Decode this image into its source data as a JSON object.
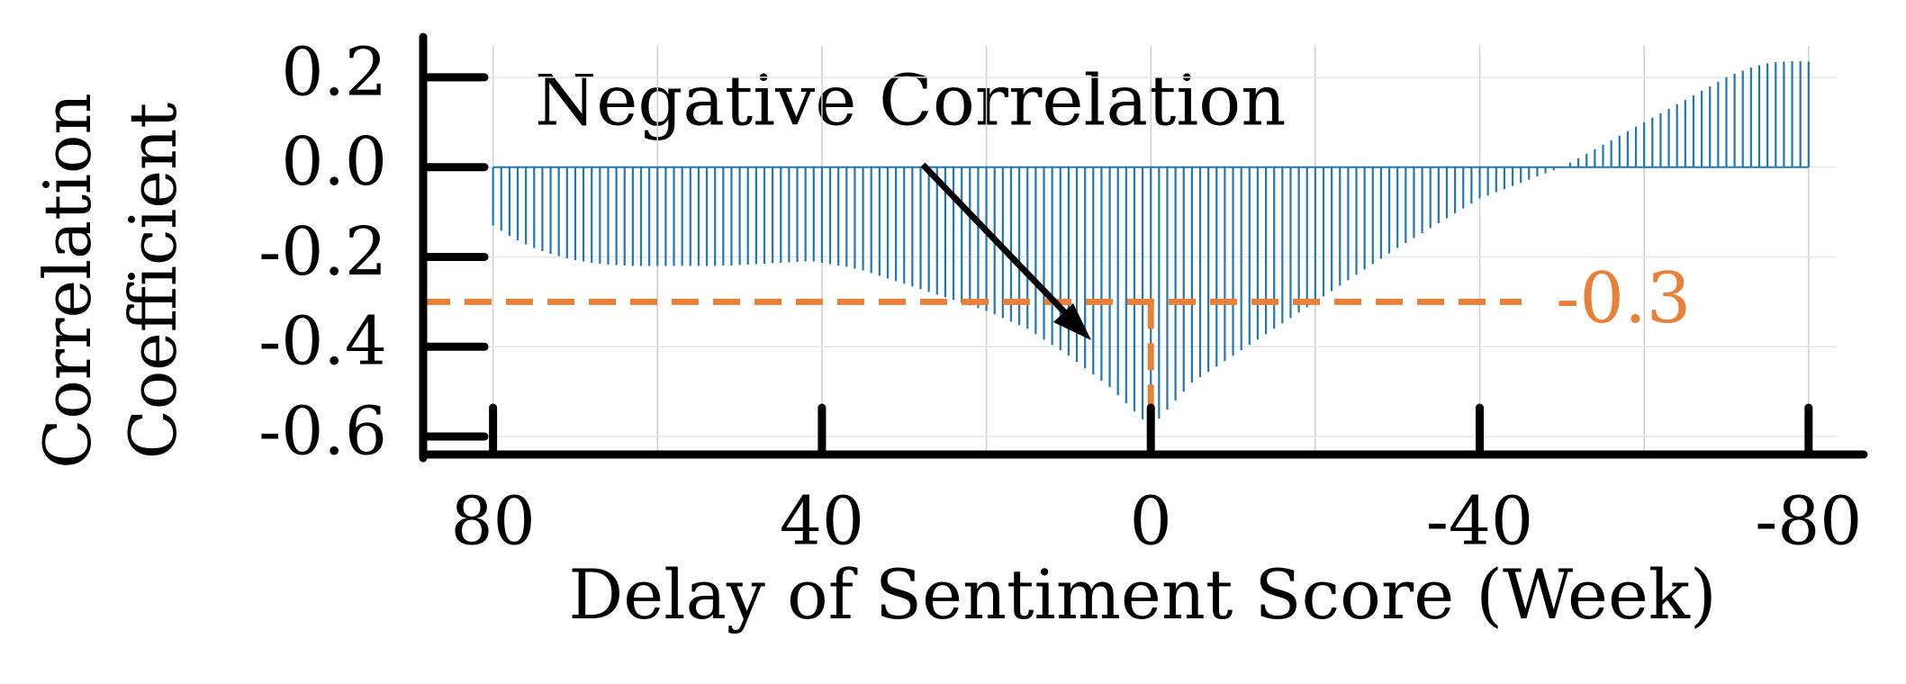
{
  "chart_data": {
    "type": "stem",
    "xlabel": "Delay of Sentiment Score (Week)",
    "ylabel": [
      "Correlation",
      "Coefficient"
    ],
    "annotation": "Negative Correlation",
    "reference": {
      "value": -0.3,
      "label": "-0.3",
      "color": "#e8803a"
    },
    "color": "#1f77b4",
    "xlim": [
      88.5,
      -86.7
    ],
    "ylim": [
      -0.64,
      0.29
    ],
    "xticks": [
      80,
      40,
      0,
      -40,
      -80
    ],
    "xgrid": [
      80,
      60,
      40,
      20,
      0,
      -20,
      -40,
      -60,
      -80
    ],
    "yticks": [
      0.2,
      {
        "value": 0,
        "label": "0.0"
      },
      -0.2,
      -0.4,
      -0.6
    ],
    "grid": true,
    "x": [
      80,
      79,
      78,
      77,
      76,
      75,
      74,
      73,
      72,
      71,
      70,
      69,
      68,
      67,
      66,
      65,
      64,
      63,
      62,
      61,
      60,
      59,
      58,
      57,
      56,
      55,
      54,
      53,
      52,
      51,
      50,
      49,
      48,
      47,
      46,
      45,
      44,
      43,
      42,
      41,
      40,
      39,
      38,
      37,
      36,
      35,
      34,
      33,
      32,
      31,
      30,
      29,
      28,
      27,
      26,
      25,
      24,
      23,
      22,
      21,
      20,
      19,
      18,
      17,
      16,
      15,
      14,
      13,
      12,
      11,
      10,
      9,
      8,
      7,
      6,
      5,
      4,
      3,
      2,
      1,
      0,
      -1,
      -2,
      -3,
      -4,
      -5,
      -6,
      -7,
      -8,
      -9,
      -10,
      -11,
      -12,
      -13,
      -14,
      -15,
      -16,
      -17,
      -18,
      -19,
      -20,
      -21,
      -22,
      -23,
      -24,
      -25,
      -26,
      -27,
      -28,
      -29,
      -30,
      -31,
      -32,
      -33,
      -34,
      -35,
      -36,
      -37,
      -38,
      -39,
      -40,
      -41,
      -42,
      -43,
      -44,
      -45,
      -46,
      -47,
      -48,
      -49,
      -50,
      -51,
      -52,
      -53,
      -54,
      -55,
      -56,
      -57,
      -58,
      -59,
      -60,
      -61,
      -62,
      -63,
      -64,
      -65,
      -66,
      -67,
      -68,
      -69,
      -70,
      -71,
      -72,
      -73,
      -74,
      -75,
      -76,
      -77,
      -78,
      -79,
      -80
    ],
    "values": [
      -0.13,
      -0.142,
      -0.153,
      -0.163,
      -0.172,
      -0.18,
      -0.187,
      -0.193,
      -0.198,
      -0.203,
      -0.207,
      -0.21,
      -0.213,
      -0.215,
      -0.217,
      -0.218,
      -0.219,
      -0.22,
      -0.22,
      -0.22,
      -0.22,
      -0.22,
      -0.22,
      -0.22,
      -0.22,
      -0.22,
      -0.22,
      -0.22,
      -0.219,
      -0.219,
      -0.218,
      -0.217,
      -0.216,
      -0.215,
      -0.214,
      -0.213,
      -0.212,
      -0.211,
      -0.21,
      -0.21,
      -0.213,
      -0.216,
      -0.219,
      -0.222,
      -0.226,
      -0.23,
      -0.236,
      -0.242,
      -0.248,
      -0.254,
      -0.26,
      -0.266,
      -0.272,
      -0.278,
      -0.284,
      -0.29,
      -0.296,
      -0.302,
      -0.308,
      -0.314,
      -0.32,
      -0.328,
      -0.336,
      -0.344,
      -0.352,
      -0.36,
      -0.372,
      -0.384,
      -0.396,
      -0.408,
      -0.42,
      -0.434,
      -0.448,
      -0.462,
      -0.476,
      -0.49,
      -0.508,
      -0.526,
      -0.544,
      -0.562,
      -0.58,
      -0.56,
      -0.54,
      -0.52,
      -0.5,
      -0.48,
      -0.468,
      -0.456,
      -0.444,
      -0.432,
      -0.42,
      -0.408,
      -0.396,
      -0.384,
      -0.372,
      -0.36,
      -0.348,
      -0.336,
      -0.324,
      -0.312,
      -0.3,
      -0.288,
      -0.276,
      -0.264,
      -0.252,
      -0.24,
      -0.228,
      -0.216,
      -0.204,
      -0.192,
      -0.18,
      -0.169,
      -0.158,
      -0.147,
      -0.136,
      -0.125,
      -0.114,
      -0.103,
      -0.092,
      -0.081,
      -0.07,
      -0.063,
      -0.056,
      -0.049,
      -0.042,
      -0.035,
      -0.028,
      -0.021,
      -0.014,
      -0.007,
      0.0,
      0.01,
      0.02,
      0.03,
      0.04,
      0.05,
      0.06,
      0.07,
      0.08,
      0.09,
      0.1,
      0.11,
      0.12,
      0.13,
      0.14,
      0.15,
      0.16,
      0.17,
      0.18,
      0.19,
      0.2,
      0.208,
      0.215,
      0.222,
      0.227,
      0.231,
      0.234,
      0.235,
      0.236,
      0.236,
      0.235
    ]
  }
}
